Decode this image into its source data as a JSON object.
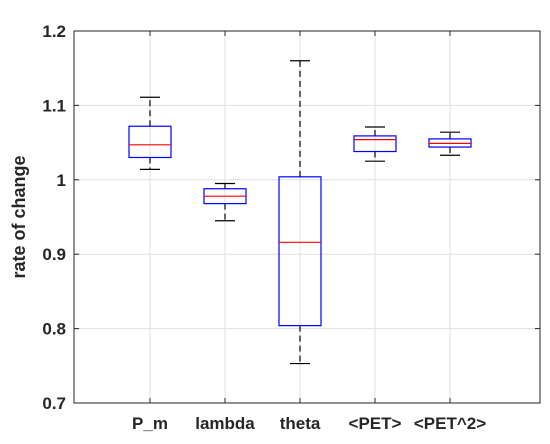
{
  "chart_data": {
    "type": "boxplot",
    "title": "",
    "xlabel": "",
    "ylabel": "rate of change",
    "ylim": [
      0.7,
      1.2
    ],
    "yticks": [
      0.7,
      0.8,
      0.9,
      1.0,
      1.1,
      1.2
    ],
    "ytick_labels": [
      "0.7",
      "0.8",
      "0.9",
      "1",
      "1.1",
      "1.2"
    ],
    "grid": true,
    "categories": [
      "P_m",
      "lambda",
      "theta",
      "<PET>",
      "<PET^2>"
    ],
    "boxes": [
      {
        "whisker_low": 1.014,
        "q1": 1.03,
        "median": 1.047,
        "q3": 1.072,
        "whisker_high": 1.111
      },
      {
        "whisker_low": 0.945,
        "q1": 0.968,
        "median": 0.978,
        "q3": 0.988,
        "whisker_high": 0.995
      },
      {
        "whisker_low": 0.753,
        "q1": 0.804,
        "median": 0.916,
        "q3": 1.004,
        "whisker_high": 1.16
      },
      {
        "whisker_low": 1.025,
        "q1": 1.038,
        "median": 1.054,
        "q3": 1.059,
        "whisker_high": 1.071
      },
      {
        "whisker_low": 1.033,
        "q1": 1.044,
        "median": 1.049,
        "q3": 1.055,
        "whisker_high": 1.064
      }
    ],
    "colors": {
      "box": "#0000ff",
      "median": "#ff0000",
      "whisker": "#000000",
      "grid": "#dfdfdf",
      "axis": "#262626"
    }
  }
}
